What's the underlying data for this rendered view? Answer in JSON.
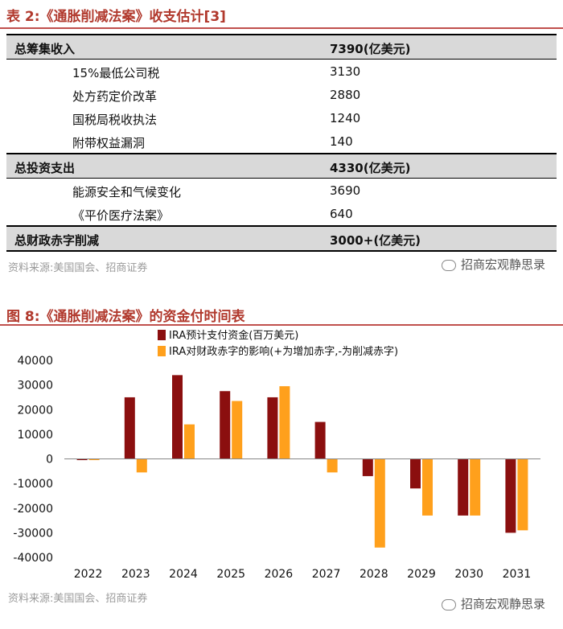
{
  "table": {
    "title": "表 2:《通胀削减法案》收支估计[3]",
    "rows": [
      {
        "label": "总筹集收入",
        "value": "7390(亿美元)",
        "kind": "header"
      },
      {
        "label": "15%最低公司税",
        "value": "3130",
        "kind": "item"
      },
      {
        "label": "处方药定价改革",
        "value": "2880",
        "kind": "item"
      },
      {
        "label": "国税局税收执法",
        "value": "1240",
        "kind": "item"
      },
      {
        "label": "附带权益漏洞",
        "value": "140",
        "kind": "item"
      },
      {
        "label": "总投资支出",
        "value": "4330(亿美元)",
        "kind": "header"
      },
      {
        "label": "能源安全和气候变化",
        "value": "3690",
        "kind": "item"
      },
      {
        "label": "《平价医疗法案》",
        "value": "640",
        "kind": "item"
      },
      {
        "label": "总财政赤字削减",
        "value": "3000+(亿美元)",
        "kind": "header"
      }
    ],
    "source": "资料来源:美国国会、招商证券",
    "watermark": "招商宏观静思录"
  },
  "figure": {
    "title": "图 8:《通胀削减法案》的资金付时间表",
    "source": "资料来源:美国国会、招商证券",
    "watermark": "招商宏观静思录"
  },
  "colors": {
    "series1": "#8b0f0f",
    "series2": "#ffa01c",
    "title": "#b1392d",
    "rule": "#c0504d"
  },
  "chart_data": {
    "type": "bar",
    "categories": [
      "2022",
      "2023",
      "2024",
      "2025",
      "2026",
      "2027",
      "2028",
      "2029",
      "2030",
      "2031"
    ],
    "series": [
      {
        "name": "IRA预计支付资金(百万美元)",
        "values": [
          -500,
          25000,
          34000,
          27500,
          25000,
          15000,
          -7000,
          -12000,
          -23000,
          -30000
        ]
      },
      {
        "name": "IRA对财政赤字的影响(+为增加赤字,-为削减赤字)",
        "values": [
          -500,
          -5500,
          14000,
          23500,
          29500,
          -5500,
          -36000,
          -23000,
          -23000,
          -29000
        ]
      }
    ],
    "yticks": [
      40000,
      30000,
      20000,
      10000,
      0,
      -10000,
      -20000,
      -30000,
      -40000
    ],
    "ylim": [
      -40000,
      40000
    ],
    "legend_position": "top"
  }
}
